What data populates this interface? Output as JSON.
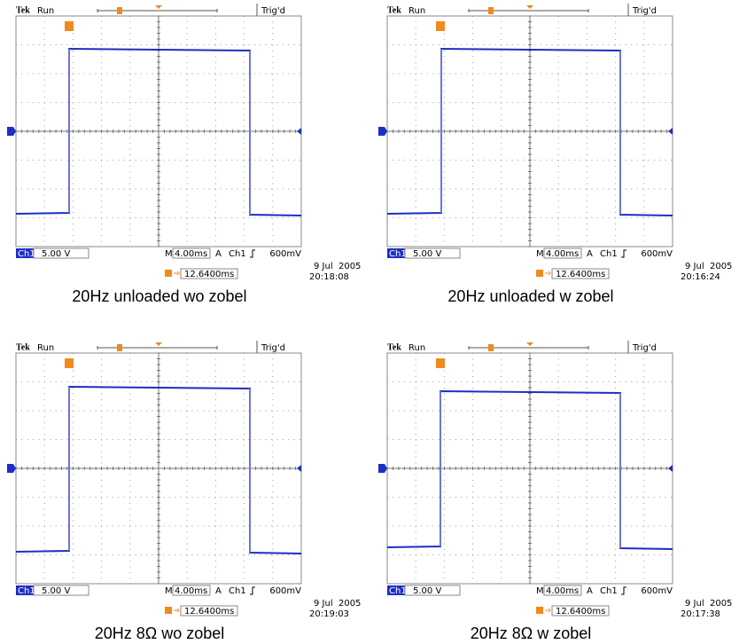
{
  "panels": [
    {
      "brand": "Tek",
      "status": "Run",
      "trigger_state": "Trig'd",
      "channel": "Ch1",
      "volts_per_div": "5.00 V",
      "time_prefix": "M",
      "time_per_div": "4.00ms",
      "trigger_mode": "A",
      "trigger_channel": "Ch1",
      "trigger_level": "600mV",
      "trigger_delay": "12.6400ms",
      "date": "9 Jul  2005",
      "time": "20:18:08",
      "caption": "20Hz unloaded wo zobel"
    },
    {
      "brand": "Tek",
      "status": "Run",
      "trigger_state": "Trig'd",
      "channel": "Ch1",
      "volts_per_div": "5.00 V",
      "time_prefix": "M",
      "time_per_div": "4.00ms",
      "trigger_mode": "A",
      "trigger_channel": "Ch1",
      "trigger_level": "600mV",
      "trigger_delay": "12.6400ms",
      "date": "9 Jul  2005",
      "time": "20:16:24",
      "caption": "20Hz unloaded w zobel"
    },
    {
      "brand": "Tek",
      "status": "Run",
      "trigger_state": "Trig'd",
      "channel": "Ch1",
      "volts_per_div": "5.00 V",
      "time_prefix": "M",
      "time_per_div": "4.00ms",
      "trigger_mode": "A",
      "trigger_channel": "Ch1",
      "trigger_level": "600mV",
      "trigger_delay": "12.6400ms",
      "date": "9 Jul  2005",
      "time": "20:19:03",
      "caption": "20Hz 8Ω wo zobel"
    },
    {
      "brand": "Tek",
      "status": "Run",
      "trigger_state": "Trig'd",
      "channel": "Ch1",
      "volts_per_div": "5.00 V",
      "time_prefix": "M",
      "time_per_div": "4.00ms",
      "trigger_mode": "A",
      "trigger_channel": "Ch1",
      "trigger_level": "600mV",
      "trigger_delay": "12.6400ms",
      "date": "9 Jul  2005",
      "time": "20:17:38",
      "caption": "20Hz 8Ω w zobel"
    }
  ]
}
